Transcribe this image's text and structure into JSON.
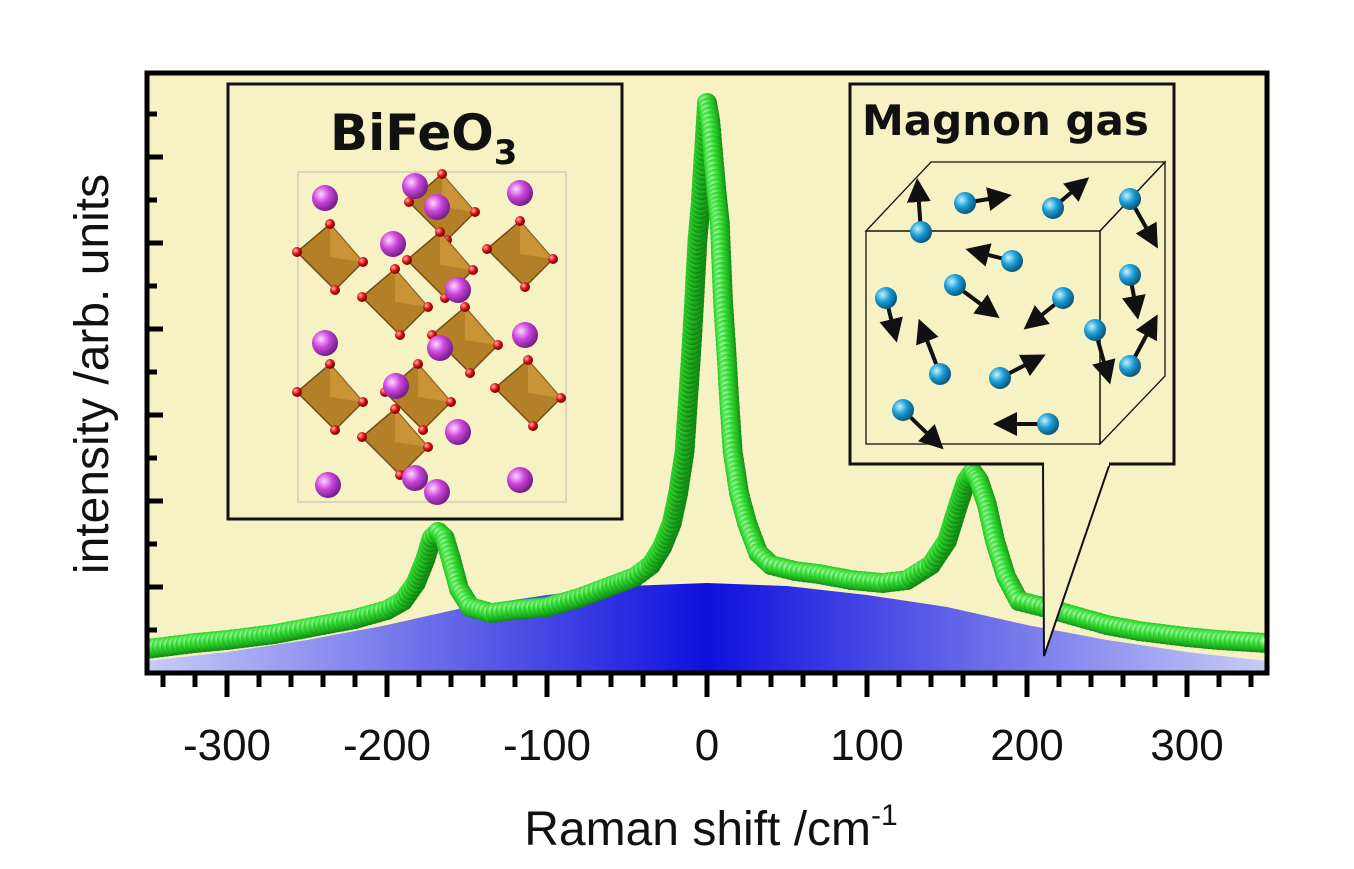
{
  "chart_data": {
    "type": "scatter",
    "xlabel_main": "Raman shift /cm",
    "xlabel_sup": "-1",
    "ylabel": "intensity /arb. units",
    "xlim": [
      -350,
      350
    ],
    "ylim": [
      0,
      1
    ],
    "x_ticks": [
      -300,
      -200,
      -100,
      0,
      100,
      200,
      300
    ],
    "x_tick_labels": [
      "-300",
      "-200",
      "-100",
      "0",
      "100",
      "200",
      "300"
    ],
    "y_tick_labels_shown": false,
    "plot_background": "#f7f2c4",
    "series": [
      {
        "kind": "markers",
        "color": "#22cc22",
        "points": [
          [
            -350,
            0.04
          ],
          [
            -320,
            0.05
          ],
          [
            -300,
            0.055
          ],
          [
            -270,
            0.065
          ],
          [
            -240,
            0.08
          ],
          [
            -220,
            0.09
          ],
          [
            -200,
            0.105
          ],
          [
            -190,
            0.12
          ],
          [
            -182,
            0.15
          ],
          [
            -176,
            0.19
          ],
          [
            -172,
            0.225
          ],
          [
            -168,
            0.235
          ],
          [
            -164,
            0.225
          ],
          [
            -160,
            0.19
          ],
          [
            -155,
            0.14
          ],
          [
            -148,
            0.11
          ],
          [
            -135,
            0.1
          ],
          [
            -120,
            0.105
          ],
          [
            -100,
            0.11
          ],
          [
            -80,
            0.125
          ],
          [
            -60,
            0.145
          ],
          [
            -45,
            0.16
          ],
          [
            -35,
            0.18
          ],
          [
            -28,
            0.21
          ],
          [
            -22,
            0.25
          ],
          [
            -18,
            0.3
          ],
          [
            -14,
            0.37
          ],
          [
            -12,
            0.45
          ],
          [
            -10,
            0.53
          ],
          [
            -8,
            0.62
          ],
          [
            -6,
            0.72
          ],
          [
            -4,
            0.78
          ],
          [
            0,
            0.95
          ],
          [
            2,
            0.92
          ],
          [
            6,
            0.8
          ],
          [
            8,
            0.75
          ],
          [
            10,
            0.62
          ],
          [
            12,
            0.54
          ],
          [
            14,
            0.45
          ],
          [
            16,
            0.37
          ],
          [
            20,
            0.3
          ],
          [
            25,
            0.25
          ],
          [
            32,
            0.2
          ],
          [
            40,
            0.18
          ],
          [
            55,
            0.17
          ],
          [
            70,
            0.165
          ],
          [
            90,
            0.155
          ],
          [
            110,
            0.15
          ],
          [
            125,
            0.155
          ],
          [
            140,
            0.18
          ],
          [
            150,
            0.22
          ],
          [
            157,
            0.28
          ],
          [
            162,
            0.32
          ],
          [
            166,
            0.335
          ],
          [
            170,
            0.32
          ],
          [
            175,
            0.28
          ],
          [
            180,
            0.22
          ],
          [
            187,
            0.16
          ],
          [
            195,
            0.12
          ],
          [
            210,
            0.11
          ],
          [
            230,
            0.095
          ],
          [
            250,
            0.08
          ],
          [
            270,
            0.07
          ],
          [
            300,
            0.06
          ],
          [
            320,
            0.055
          ],
          [
            350,
            0.05
          ]
        ]
      },
      {
        "kind": "filled-area",
        "color": "#1010dd",
        "points": [
          [
            -350,
            0.02
          ],
          [
            -300,
            0.035
          ],
          [
            -250,
            0.055
          ],
          [
            -200,
            0.08
          ],
          [
            -150,
            0.11
          ],
          [
            -100,
            0.13
          ],
          [
            -50,
            0.145
          ],
          [
            0,
            0.15
          ],
          [
            50,
            0.145
          ],
          [
            100,
            0.13
          ],
          [
            150,
            0.11
          ],
          [
            200,
            0.08
          ],
          [
            250,
            0.055
          ],
          [
            300,
            0.035
          ],
          [
            350,
            0.02
          ]
        ]
      }
    ]
  },
  "insets": {
    "left": {
      "title_main": "BiFeO",
      "title_sub": "3"
    },
    "right": {
      "title": "Magnon gas"
    }
  },
  "colors": {
    "marker": "#22cc22",
    "gaussian": "#1010dd",
    "bismuth_atom": "#cc44dd",
    "iron_octahedron": "#b07a20",
    "oxygen_atom": "#dd1111",
    "magnon_atom": "#1aa0d8"
  }
}
